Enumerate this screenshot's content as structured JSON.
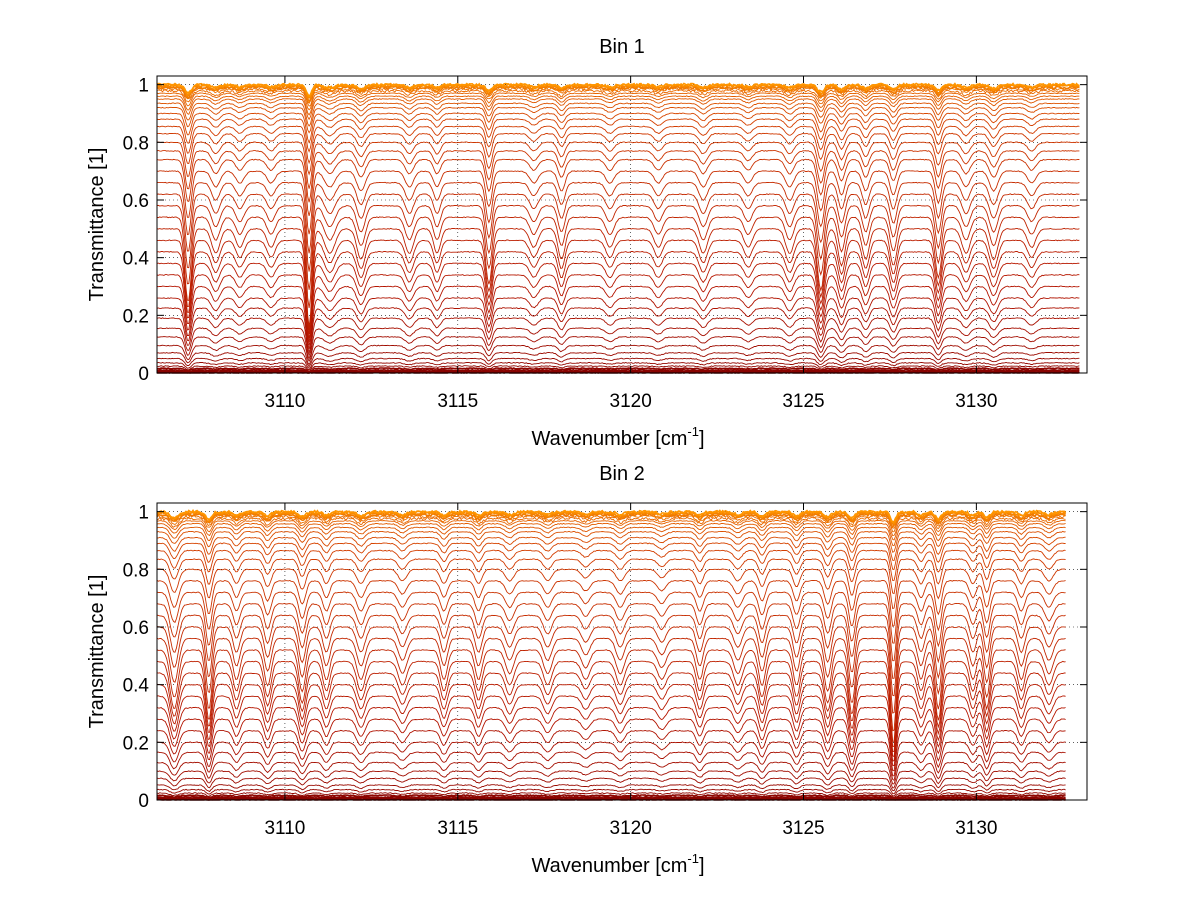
{
  "chart_data": [
    {
      "type": "line",
      "title": "Bin 1",
      "xlabel": "Wavenumber [cm",
      "xlabel_sup": "-1",
      "xlabel_end": "]",
      "ylabel": "Transmittance [1]",
      "xlim": [
        3106.3,
        3133.2
      ],
      "ylim": [
        0,
        1.03
      ],
      "grid": true,
      "xticks": [
        3110,
        3115,
        3120,
        3125,
        3130
      ],
      "yticks": [
        0,
        0.2,
        0.4,
        0.6,
        0.8,
        1
      ],
      "x_start": 3106.3,
      "x_end": 3133.0,
      "series_baselines": [
        0.0,
        0.003,
        0.006,
        0.01,
        0.016,
        0.024,
        0.035,
        0.05,
        0.07,
        0.095,
        0.125,
        0.155,
        0.19,
        0.225,
        0.26,
        0.3,
        0.34,
        0.38,
        0.42,
        0.46,
        0.5,
        0.54,
        0.58,
        0.62,
        0.66,
        0.7,
        0.74,
        0.77,
        0.8,
        0.83,
        0.855,
        0.88,
        0.9,
        0.92,
        0.935,
        0.95,
        0.96,
        0.97,
        0.978,
        0.985,
        0.99,
        0.995,
        0.998,
        1.0
      ],
      "absorption_lines": [
        {
          "x": 3107.2,
          "depth": 0.12,
          "width": 0.09
        },
        {
          "x": 3108.0,
          "depth": 0.04,
          "width": 0.12
        },
        {
          "x": 3108.7,
          "depth": 0.03,
          "width": 0.12
        },
        {
          "x": 3109.6,
          "depth": 0.03,
          "width": 0.12
        },
        {
          "x": 3110.7,
          "depth": 0.16,
          "width": 0.08
        },
        {
          "x": 3111.3,
          "depth": 0.04,
          "width": 0.15
        },
        {
          "x": 3112.2,
          "depth": 0.05,
          "width": 0.12
        },
        {
          "x": 3113.6,
          "depth": 0.04,
          "width": 0.12
        },
        {
          "x": 3114.4,
          "depth": 0.04,
          "width": 0.1
        },
        {
          "x": 3115.9,
          "depth": 0.09,
          "width": 0.09
        },
        {
          "x": 3117.2,
          "depth": 0.03,
          "width": 0.12
        },
        {
          "x": 3118.0,
          "depth": 0.05,
          "width": 0.1
        },
        {
          "x": 3119.4,
          "depth": 0.03,
          "width": 0.12
        },
        {
          "x": 3120.8,
          "depth": 0.03,
          "width": 0.12
        },
        {
          "x": 3122.1,
          "depth": 0.04,
          "width": 0.12
        },
        {
          "x": 3123.4,
          "depth": 0.03,
          "width": 0.12
        },
        {
          "x": 3124.6,
          "depth": 0.04,
          "width": 0.12
        },
        {
          "x": 3125.5,
          "depth": 0.1,
          "width": 0.1
        },
        {
          "x": 3126.1,
          "depth": 0.06,
          "width": 0.1
        },
        {
          "x": 3126.8,
          "depth": 0.05,
          "width": 0.1
        },
        {
          "x": 3127.6,
          "depth": 0.06,
          "width": 0.1
        },
        {
          "x": 3128.9,
          "depth": 0.08,
          "width": 0.09
        },
        {
          "x": 3129.7,
          "depth": 0.04,
          "width": 0.12
        },
        {
          "x": 3130.5,
          "depth": 0.05,
          "width": 0.12
        },
        {
          "x": 3131.6,
          "depth": 0.03,
          "width": 0.12
        }
      ]
    },
    {
      "type": "line",
      "title": "Bin 2",
      "xlabel": "Wavenumber [cm",
      "xlabel_sup": "-1",
      "xlabel_end": "]",
      "ylabel": "Transmittance [1]",
      "xlim": [
        3106.3,
        3133.2
      ],
      "ylim": [
        0,
        1.03
      ],
      "grid": true,
      "xticks": [
        3110,
        3115,
        3120,
        3125,
        3130
      ],
      "yticks": [
        0,
        0.2,
        0.4,
        0.6,
        0.8,
        1
      ],
      "x_start": 3106.3,
      "x_end": 3132.6,
      "series_baselines": [
        0.0,
        0.003,
        0.006,
        0.01,
        0.016,
        0.024,
        0.036,
        0.052,
        0.075,
        0.1,
        0.13,
        0.165,
        0.2,
        0.24,
        0.28,
        0.32,
        0.36,
        0.4,
        0.44,
        0.48,
        0.52,
        0.56,
        0.6,
        0.64,
        0.68,
        0.72,
        0.76,
        0.8,
        0.835,
        0.865,
        0.89,
        0.91,
        0.93,
        0.945,
        0.958,
        0.968,
        0.976,
        0.983,
        0.989,
        0.994,
        0.997,
        1.0
      ],
      "absorption_lines": [
        {
          "x": 3106.8,
          "depth": 0.08,
          "width": 0.12
        },
        {
          "x": 3107.8,
          "depth": 0.1,
          "width": 0.09
        },
        {
          "x": 3108.6,
          "depth": 0.05,
          "width": 0.1
        },
        {
          "x": 3109.5,
          "depth": 0.06,
          "width": 0.1
        },
        {
          "x": 3110.5,
          "depth": 0.07,
          "width": 0.1
        },
        {
          "x": 3111.2,
          "depth": 0.05,
          "width": 0.1
        },
        {
          "x": 3112.2,
          "depth": 0.05,
          "width": 0.12
        },
        {
          "x": 3113.4,
          "depth": 0.04,
          "width": 0.12
        },
        {
          "x": 3114.6,
          "depth": 0.05,
          "width": 0.1
        },
        {
          "x": 3115.6,
          "depth": 0.05,
          "width": 0.1
        },
        {
          "x": 3116.5,
          "depth": 0.04,
          "width": 0.12
        },
        {
          "x": 3117.6,
          "depth": 0.04,
          "width": 0.12
        },
        {
          "x": 3118.7,
          "depth": 0.03,
          "width": 0.12
        },
        {
          "x": 3119.7,
          "depth": 0.04,
          "width": 0.12
        },
        {
          "x": 3120.9,
          "depth": 0.03,
          "width": 0.12
        },
        {
          "x": 3122.0,
          "depth": 0.05,
          "width": 0.1
        },
        {
          "x": 3123.1,
          "depth": 0.04,
          "width": 0.12
        },
        {
          "x": 3123.8,
          "depth": 0.06,
          "width": 0.1
        },
        {
          "x": 3124.8,
          "depth": 0.06,
          "width": 0.1
        },
        {
          "x": 3125.7,
          "depth": 0.07,
          "width": 0.1
        },
        {
          "x": 3126.4,
          "depth": 0.09,
          "width": 0.09
        },
        {
          "x": 3127.6,
          "depth": 0.14,
          "width": 0.08
        },
        {
          "x": 3128.4,
          "depth": 0.05,
          "width": 0.1
        },
        {
          "x": 3128.9,
          "depth": 0.1,
          "width": 0.09
        },
        {
          "x": 3129.9,
          "depth": 0.05,
          "width": 0.1
        },
        {
          "x": 3130.3,
          "depth": 0.08,
          "width": 0.09
        },
        {
          "x": 3131.3,
          "depth": 0.05,
          "width": 0.1
        },
        {
          "x": 3132.1,
          "depth": 0.04,
          "width": 0.12
        }
      ]
    }
  ]
}
